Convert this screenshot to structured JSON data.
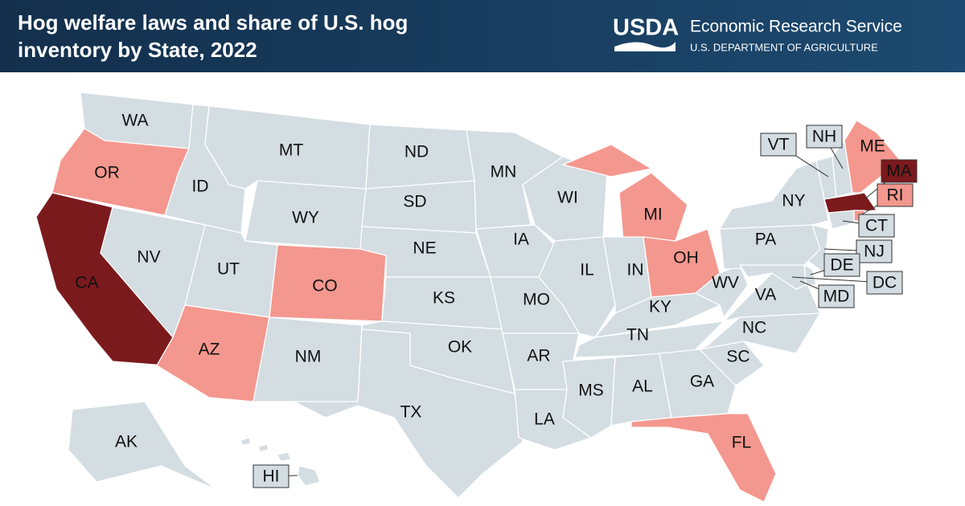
{
  "header": {
    "title_lines": [
      "Hog welfare laws and share of U.S. hog",
      "inventory by State, 2022"
    ],
    "logo": "USDA",
    "agency": "Economic Research Service",
    "department": "U.S. DEPARTMENT OF AGRICULTURE"
  },
  "states": [
    {
      "label": "WA",
      "color": "#d3dde2"
    },
    {
      "label": "OR",
      "color": "#f4978e"
    },
    {
      "label": "CA",
      "color": "#7b1a1d"
    },
    {
      "label": "NV",
      "color": "#d3dde2"
    },
    {
      "label": "ID",
      "color": "#d3dde2"
    },
    {
      "label": "MT",
      "color": "#d3dde2"
    },
    {
      "label": "WY",
      "color": "#d3dde2"
    },
    {
      "label": "UT",
      "color": "#d3dde2"
    },
    {
      "label": "CO",
      "color": "#f4978e"
    },
    {
      "label": "AZ",
      "color": "#f4978e"
    },
    {
      "label": "NM",
      "color": "#d3dde2"
    },
    {
      "label": "ND",
      "color": "#d3dde2"
    },
    {
      "label": "SD",
      "color": "#d3dde2"
    },
    {
      "label": "NE",
      "color": "#d3dde2"
    },
    {
      "label": "KS",
      "color": "#d3dde2"
    },
    {
      "label": "OK",
      "color": "#d3dde2"
    },
    {
      "label": "TX",
      "color": "#d3dde2"
    },
    {
      "label": "MN",
      "color": "#d3dde2"
    },
    {
      "label": "IA",
      "color": "#d3dde2"
    },
    {
      "label": "MO",
      "color": "#d3dde2"
    },
    {
      "label": "AR",
      "color": "#d3dde2"
    },
    {
      "label": "LA",
      "color": "#d3dde2"
    },
    {
      "label": "WI",
      "color": "#d3dde2"
    },
    {
      "label": "IL",
      "color": "#d3dde2"
    },
    {
      "label": "MI",
      "color": "#f4978e"
    },
    {
      "label": "IN",
      "color": "#d3dde2"
    },
    {
      "label": "OH",
      "color": "#f4978e"
    },
    {
      "label": "KY",
      "color": "#d3dde2"
    },
    {
      "label": "TN",
      "color": "#d3dde2"
    },
    {
      "label": "MS",
      "color": "#d3dde2"
    },
    {
      "label": "AL",
      "color": "#d3dde2"
    },
    {
      "label": "GA",
      "color": "#d3dde2"
    },
    {
      "label": "FL",
      "color": "#f4978e"
    },
    {
      "label": "SC",
      "color": "#d3dde2"
    },
    {
      "label": "NC",
      "color": "#d3dde2"
    },
    {
      "label": "VA",
      "color": "#d3dde2"
    },
    {
      "label": "WV",
      "color": "#d3dde2"
    },
    {
      "label": "PA",
      "color": "#d3dde2"
    },
    {
      "label": "NY",
      "color": "#d3dde2"
    },
    {
      "label": "VT",
      "color": "#d3dde2"
    },
    {
      "label": "NH",
      "color": "#d3dde2"
    },
    {
      "label": "ME",
      "color": "#f4978e"
    },
    {
      "label": "MA",
      "color": "#7b1a1d"
    },
    {
      "label": "RI",
      "color": "#f4978e"
    },
    {
      "label": "CT",
      "color": "#d3dde2"
    },
    {
      "label": "NJ",
      "color": "#d3dde2"
    },
    {
      "label": "DE",
      "color": "#d3dde2"
    },
    {
      "label": "MD",
      "color": "#d3dde2"
    },
    {
      "label": "DC",
      "color": "#d3dde2"
    },
    {
      "label": "AK",
      "color": "#d3dde2"
    },
    {
      "label": "HI",
      "color": "#d3dde2"
    }
  ]
}
